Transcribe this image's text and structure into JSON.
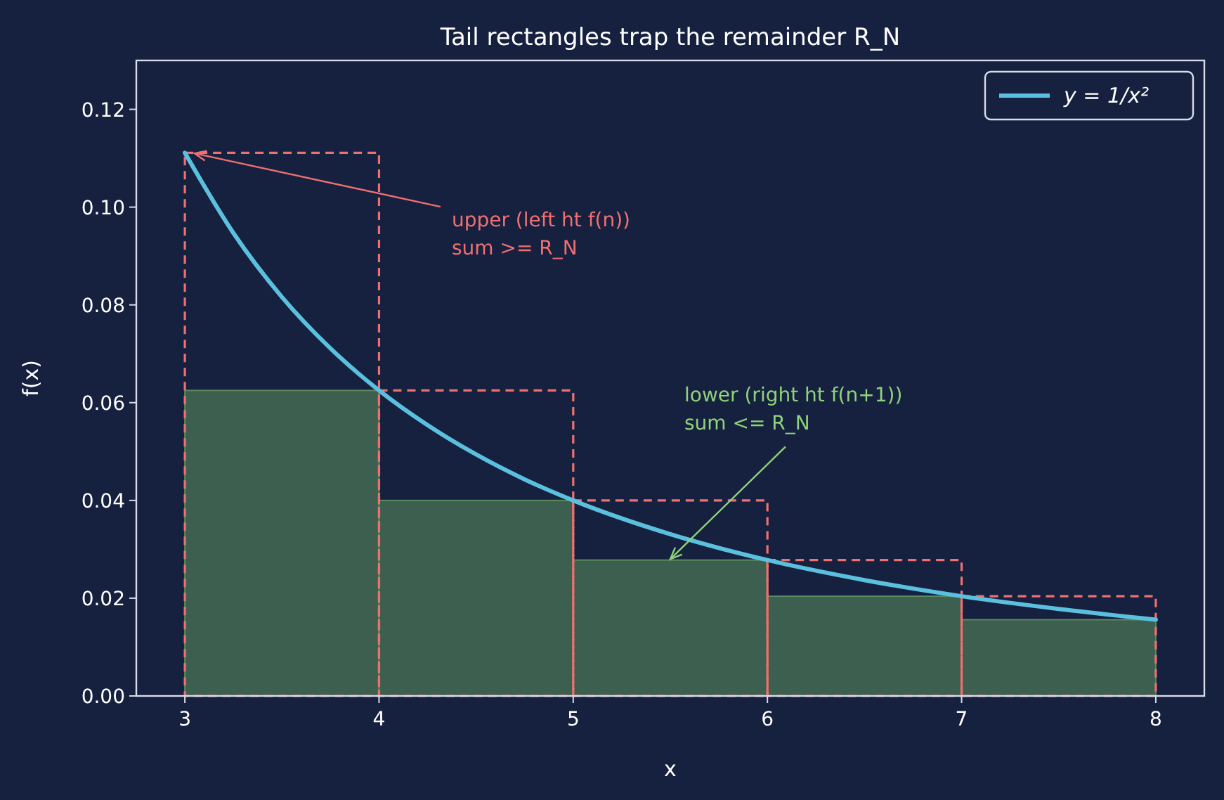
{
  "chart_data": {
    "type": "line",
    "title": "Tail rectangles trap the remainder R_N",
    "xlabel": "x",
    "ylabel": "f(x)",
    "xlim": [
      2.75,
      8.25
    ],
    "xticks": [
      3,
      4,
      5,
      6,
      7,
      8
    ],
    "ylim": [
      0,
      0.13
    ],
    "yticks": [
      {
        "value": 0,
        "label": "0.00"
      },
      {
        "value": 0.02,
        "label": "0.02"
      },
      {
        "value": 0.04,
        "label": "0.04"
      },
      {
        "value": 0.06,
        "label": "0.06"
      },
      {
        "value": 0.08,
        "label": "0.08"
      },
      {
        "value": 0.1,
        "label": "0.10"
      },
      {
        "value": 0.12,
        "label": "0.12"
      }
    ],
    "grid": false,
    "legend": "top right",
    "series": [
      {
        "type": "histogram",
        "color": "#3d5f4f",
        "bins": [
          3,
          4,
          5,
          6,
          7,
          8
        ],
        "values": [
          0.0625,
          0.04,
          0.0278,
          0.0204,
          0.0156
        ]
      },
      {
        "type": "histogram",
        "color": "#f07070",
        "line_style": "dashed",
        "bins": [
          3,
          4,
          5,
          6,
          7,
          8
        ],
        "values": [
          0.1111,
          0.0625,
          0.04,
          0.0278,
          0.0204
        ]
      },
      {
        "type": "line",
        "name": "y = 1/x²",
        "color": "#5bc0de",
        "x": [
          3,
          3.25,
          3.5,
          3.75,
          4,
          4.25,
          4.5,
          4.75,
          5,
          5.5,
          6,
          6.5,
          7,
          7.5,
          8
        ],
        "values": [
          0.1111,
          0.0947,
          0.0816,
          0.0711,
          0.0625,
          0.0554,
          0.0494,
          0.0443,
          0.04,
          0.0331,
          0.0278,
          0.0237,
          0.0204,
          0.0178,
          0.0156
        ]
      }
    ],
    "annotations": [
      {
        "text": "upper (left ht f(n))\nsum >= R_N",
        "x": 3.05,
        "y": 0.111
      },
      {
        "text": "lower (right ht f(n+1))\nsum <= R_N",
        "x": 5.5,
        "y": 0.028
      }
    ]
  }
}
